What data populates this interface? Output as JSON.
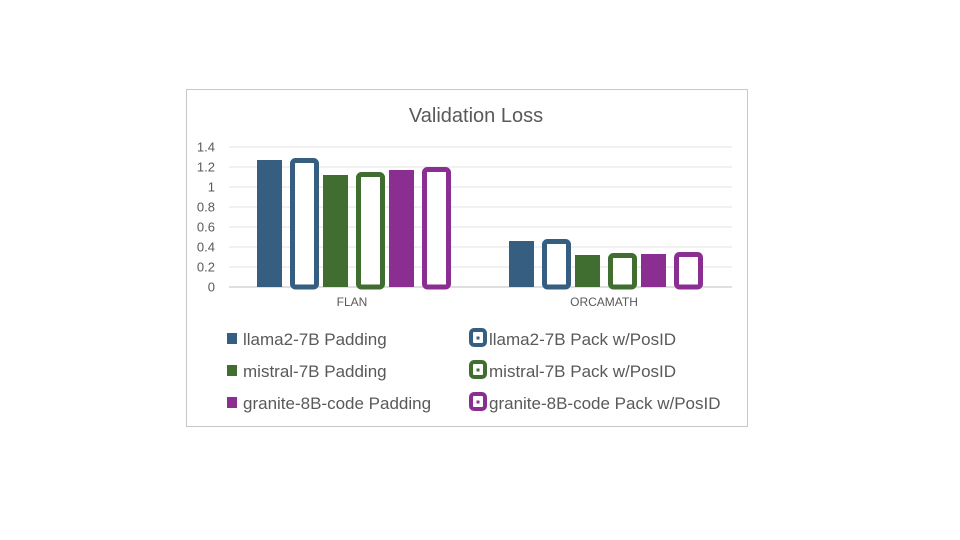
{
  "chart_data": {
    "type": "bar",
    "title": "Validation Loss",
    "xlabel": "",
    "ylabel": "",
    "ylim": [
      0,
      1.4
    ],
    "yticks": [
      "0",
      "0.2",
      "0.4",
      "0.6",
      "0.8",
      "1",
      "1.2",
      "1.4"
    ],
    "grid": true,
    "legend_position": "bottom",
    "categories": [
      "FLAN",
      "ORCAMATH"
    ],
    "series": [
      {
        "name": "llama2-7B Padding",
        "values": [
          1.27,
          0.46
        ],
        "color": "#355E80",
        "style": "filled"
      },
      {
        "name": "llama2-7B Pack w/PosID",
        "values": [
          1.29,
          0.48
        ],
        "color": "#355E80",
        "style": "outline"
      },
      {
        "name": "mistral-7B Padding",
        "values": [
          1.12,
          0.32
        ],
        "color": "#3F6E30",
        "style": "filled"
      },
      {
        "name": "mistral-7B Pack w/PosID",
        "values": [
          1.15,
          0.34
        ],
        "color": "#3F6E30",
        "style": "outline"
      },
      {
        "name": "granite-8B-code Padding",
        "values": [
          1.17,
          0.33
        ],
        "color": "#8B2E91",
        "style": "filled"
      },
      {
        "name": "granite-8B-code Pack w/PosID",
        "values": [
          1.2,
          0.35
        ],
        "color": "#8B2E91",
        "style": "outline"
      }
    ]
  }
}
